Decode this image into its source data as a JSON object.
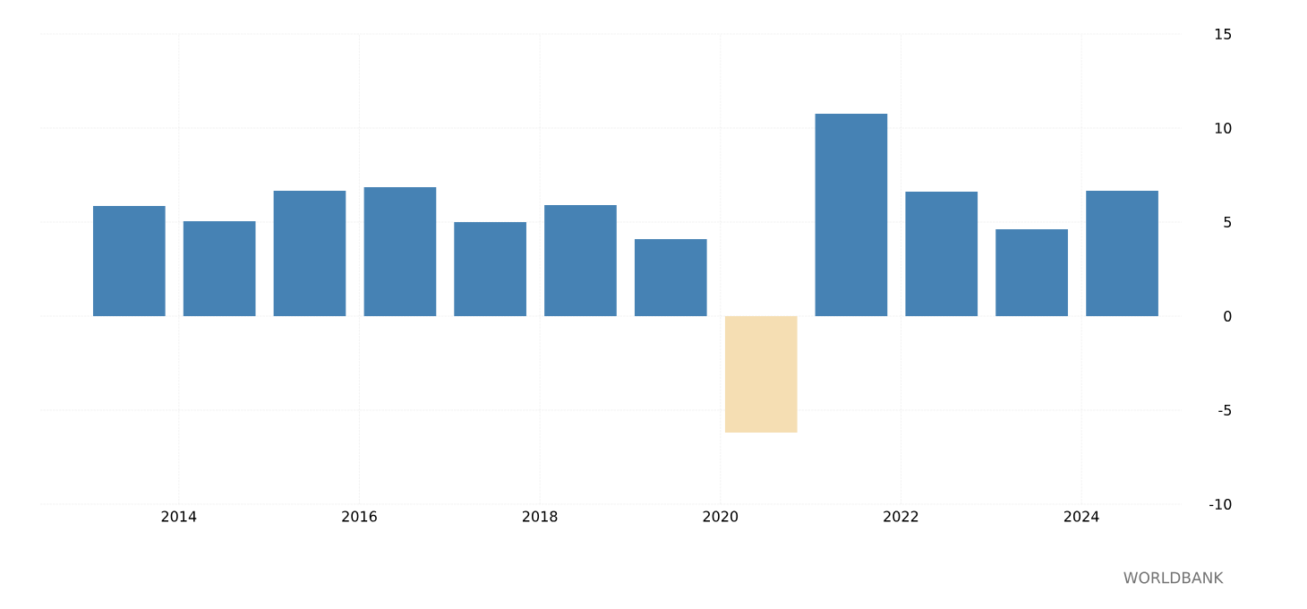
{
  "chart_data": {
    "type": "bar",
    "x": [
      "2013-06-14",
      "2014-06-14",
      "2015-06-14",
      "2016-06-14",
      "2017-06-14",
      "2018-06-14",
      "2019-06-14",
      "2020-06-14",
      "2021-06-14",
      "2022-06-14",
      "2023-06-14",
      "2024-06-14"
    ],
    "values": [
      5.86,
      5.05,
      6.67,
      6.86,
      5.0,
      5.9,
      4.1,
      -6.19,
      10.76,
      6.62,
      4.62,
      6.67
    ],
    "colors": [
      "#4682b4",
      "#4682b4",
      "#4682b4",
      "#4682b4",
      "#4682b4",
      "#4682b4",
      "#4682b4",
      "#f5deb3",
      "#4682b4",
      "#4682b4",
      "#4682b4",
      "#4682b4"
    ],
    "xlim": [
      "2012-06-19",
      "2025-02-10"
    ],
    "xticks": [
      {
        "value": "2014",
        "label": "2014"
      },
      {
        "value": "2016",
        "label": "2016"
      },
      {
        "value": "2018",
        "label": "2018"
      },
      {
        "value": "2020",
        "label": "2020"
      },
      {
        "value": "2022",
        "label": "2022"
      },
      {
        "value": "2024",
        "label": "2024"
      }
    ],
    "ylim": [
      -10,
      15
    ],
    "yticks": [
      -10,
      -5,
      0,
      5,
      10,
      15
    ],
    "grid": true,
    "annotations": [
      "WORLDBANK"
    ]
  }
}
